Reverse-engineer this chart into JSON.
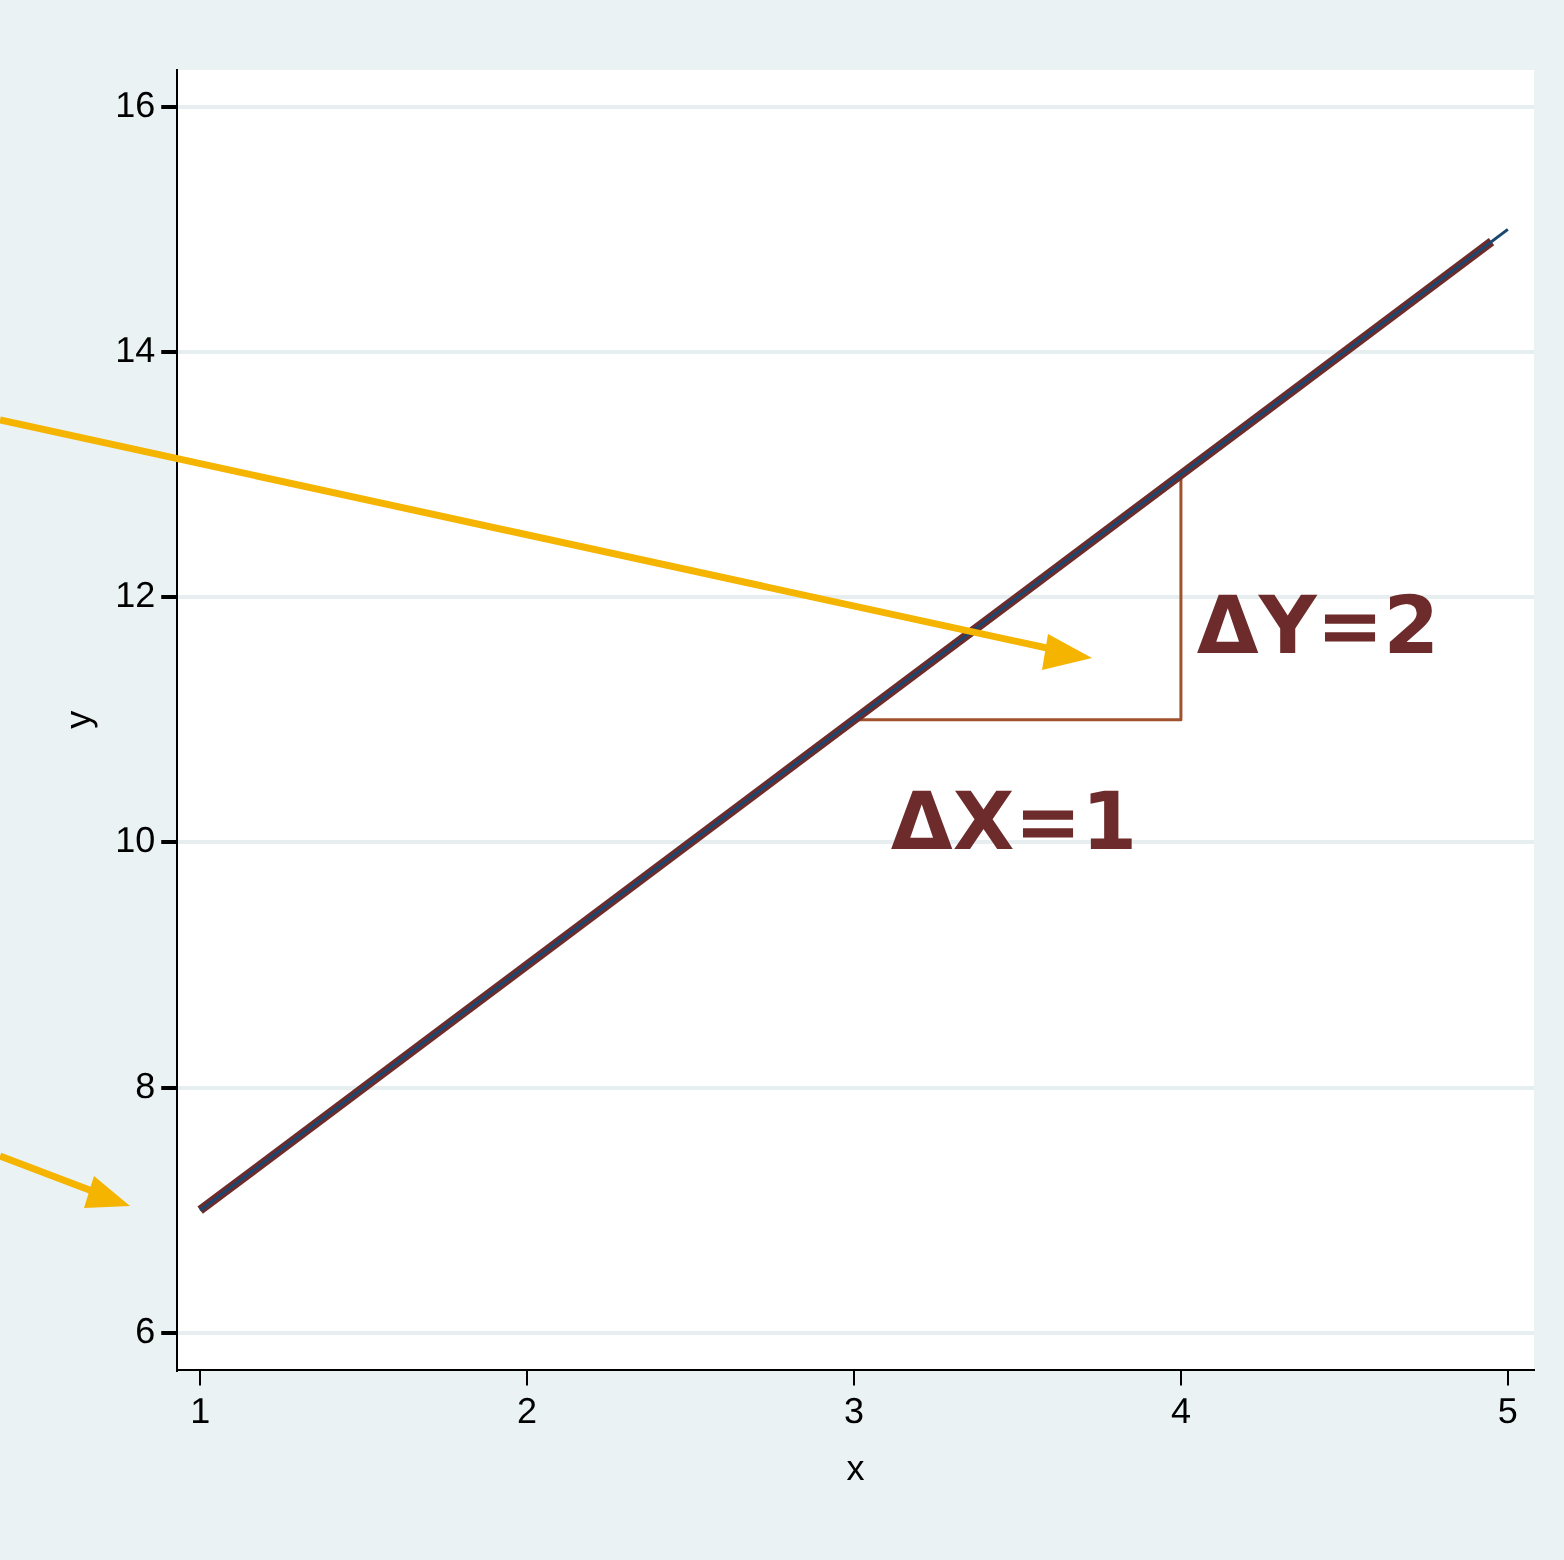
{
  "chart_data": {
    "type": "line",
    "xlabel": "x",
    "ylabel": "y",
    "marker": "none",
    "grid": "y",
    "xlim": [
      0.93,
      5.08
    ],
    "ylim": [
      5.7,
      16.3
    ],
    "xticks": [
      1,
      2,
      3,
      4,
      5
    ],
    "yticks": [
      6,
      8,
      10,
      12,
      14,
      16
    ],
    "series": [
      {
        "type": "line",
        "color": "#1a476f",
        "x": [
          1,
          5
        ],
        "values": [
          7,
          15
        ]
      },
      {
        "type": "line",
        "color": "#6e2b2b",
        "x": [
          1,
          4.95
        ],
        "values": [
          7,
          14.9
        ]
      },
      {
        "type": "line",
        "color": "#a0522d",
        "x": [
          3,
          4,
          4
        ],
        "values": [
          11,
          11,
          13
        ]
      }
    ],
    "annotations": [
      "ΔX=1",
      "ΔY=2"
    ]
  }
}
